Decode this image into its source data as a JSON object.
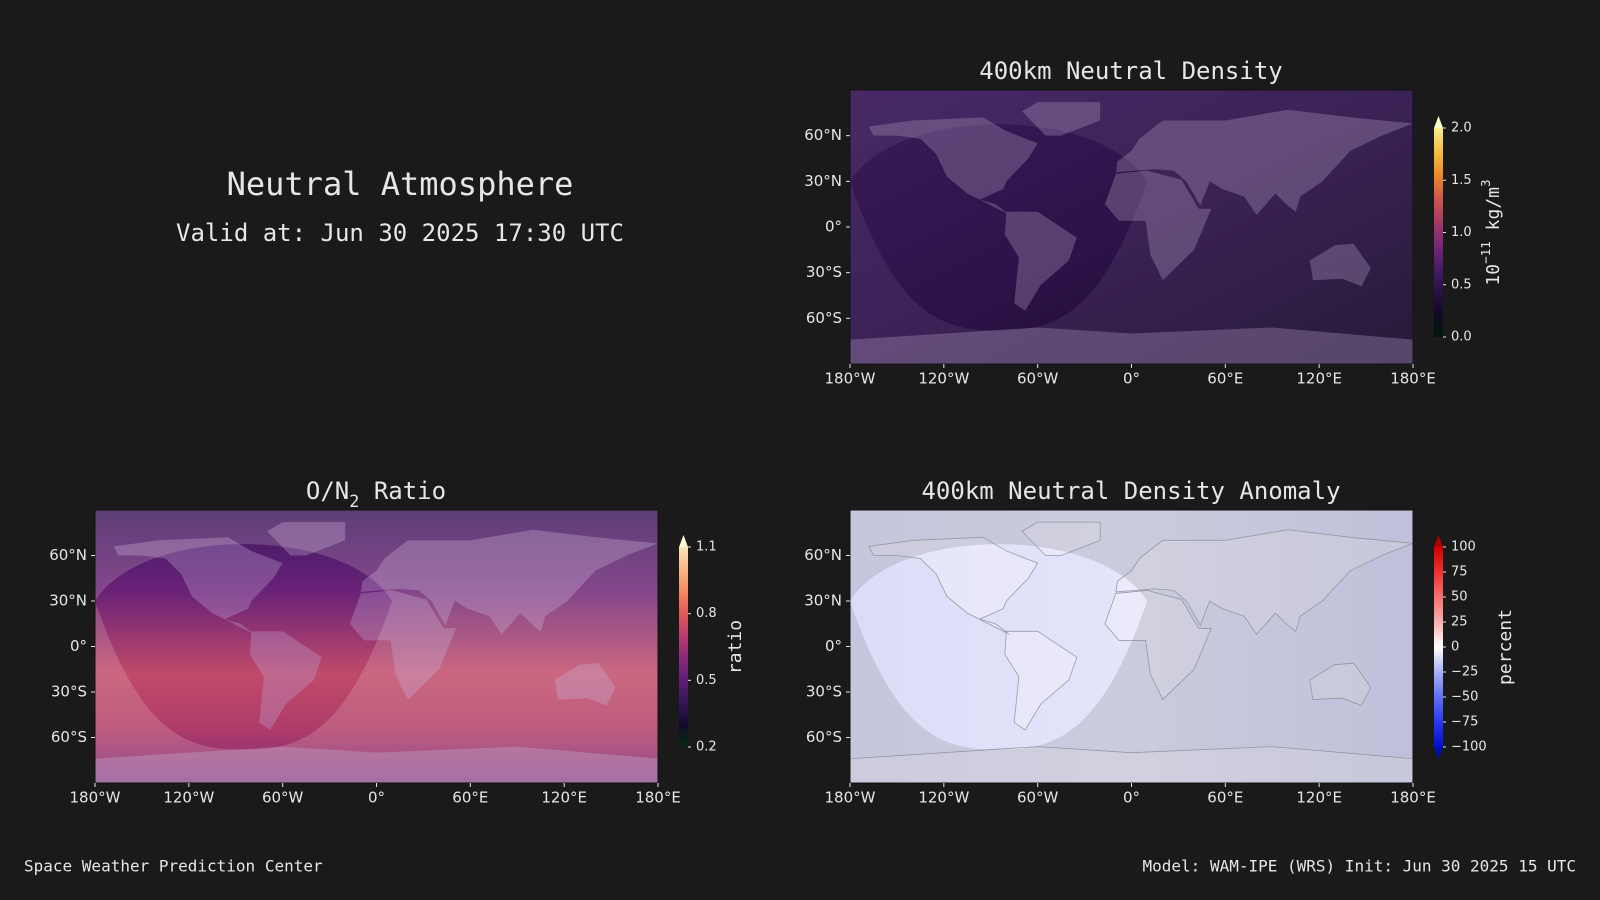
{
  "header": {
    "title": "Neutral Atmosphere",
    "valid": "Valid at: Jun 30 2025 17:30 UTC"
  },
  "footer": {
    "left": "Space Weather Prediction Center",
    "right": "Model: WAM-IPE (WRS) Init: Jun 30 2025 15 UTC"
  },
  "chart_data": [
    {
      "type": "map",
      "title": "400km Neutral Density",
      "xlim": [
        -180,
        180
      ],
      "ylim": [
        -90,
        90
      ],
      "xticks": [
        {
          "value": -180,
          "label": "180°W"
        },
        {
          "value": -120,
          "label": "120°W"
        },
        {
          "value": -60,
          "label": "60°W"
        },
        {
          "value": 0,
          "label": "0°"
        },
        {
          "value": 60,
          "label": "60°E"
        },
        {
          "value": 120,
          "label": "120°E"
        },
        {
          "value": 180,
          "label": "180°E"
        }
      ],
      "yticks": [
        {
          "value": 60,
          "label": "60°N"
        },
        {
          "value": 30,
          "label": "30°N"
        },
        {
          "value": 0,
          "label": "0°"
        },
        {
          "value": -30,
          "label": "30°S"
        },
        {
          "value": -60,
          "label": "60°S"
        }
      ],
      "colorbar": {
        "label": [
          {
            "text": "10"
          },
          {
            "text": "−11",
            "shift": "super"
          },
          {
            "text": " kg/m"
          },
          {
            "text": "3",
            "shift": "super"
          }
        ],
        "lim": [
          0,
          2
        ],
        "extend": "max",
        "ticks": [
          {
            "value": 0,
            "label": "0.0"
          },
          0.5,
          {
            "value": 1,
            "label": "1.0"
          },
          1.5,
          {
            "value": 2,
            "label": "2.0"
          }
        ],
        "colors": [
          "#001a08",
          "#120826",
          "#2a1248",
          "#4a1c6a",
          "#7a2a78",
          "#a83a66",
          "#d0584a",
          "#ec8a2a",
          "#f6c040",
          "#f8ec90"
        ],
        "extend_color": "#f8ffc8"
      }
    },
    {
      "type": "map",
      "title": [
        {
          "text": "O/N"
        },
        {
          "text": "2",
          "shift": "sub"
        },
        {
          "text": " Ratio"
        }
      ],
      "xlim": [
        -180,
        180
      ],
      "ylim": [
        -90,
        90
      ],
      "xticks": [
        {
          "value": -180,
          "label": "180°W"
        },
        {
          "value": -120,
          "label": "120°W"
        },
        {
          "value": -60,
          "label": "60°W"
        },
        {
          "value": 0,
          "label": "0°"
        },
        {
          "value": 60,
          "label": "60°E"
        },
        {
          "value": 120,
          "label": "120°E"
        },
        {
          "value": 180,
          "label": "180°E"
        }
      ],
      "yticks": [
        {
          "value": 60,
          "label": "60°N"
        },
        {
          "value": 30,
          "label": "30°N"
        },
        {
          "value": 0,
          "label": "0°"
        },
        {
          "value": -30,
          "label": "30°S"
        },
        {
          "value": -60,
          "label": "60°S"
        }
      ],
      "colorbar": {
        "label": [
          {
            "text": "ratio"
          }
        ],
        "lim": [
          0.2,
          1.1
        ],
        "extend": "max",
        "ticks": [
          0.2,
          0.5,
          0.8,
          1.1
        ],
        "colors": [
          "#062a10",
          "#140a2c",
          "#361654",
          "#5c1e72",
          "#8a2a7a",
          "#b83c6e",
          "#e05a5a",
          "#f48a62",
          "#f8b888",
          "#fce4b8"
        ],
        "extend_color": "#fff8d8"
      }
    },
    {
      "type": "map",
      "title": "400km Neutral Density Anomaly",
      "xlim": [
        -180,
        180
      ],
      "ylim": [
        -90,
        90
      ],
      "xticks": [
        {
          "value": -180,
          "label": "180°W"
        },
        {
          "value": -120,
          "label": "120°W"
        },
        {
          "value": -60,
          "label": "60°W"
        },
        {
          "value": 0,
          "label": "0°"
        },
        {
          "value": 60,
          "label": "60°E"
        },
        {
          "value": 120,
          "label": "120°E"
        },
        {
          "value": 180,
          "label": "180°E"
        }
      ],
      "yticks": [
        {
          "value": 60,
          "label": "60°N"
        },
        {
          "value": 30,
          "label": "30°N"
        },
        {
          "value": 0,
          "label": "0°"
        },
        {
          "value": -30,
          "label": "30°S"
        },
        {
          "value": -60,
          "label": "60°S"
        }
      ],
      "colorbar": {
        "label": [
          {
            "text": "percent"
          }
        ],
        "lim": [
          -100,
          100
        ],
        "extend": "both",
        "ticks": [
          100,
          75,
          50,
          25,
          0,
          {
            "value": -25,
            "label": "−25"
          },
          {
            "value": -50,
            "label": "−50"
          },
          {
            "value": -75,
            "label": "−75"
          },
          {
            "value": -100,
            "label": "−100"
          }
        ],
        "colors": [
          "#0010d0",
          "#2838f0",
          "#6070f8",
          "#a8b0f8",
          "#ffffff",
          "#f8b0b0",
          "#f87070",
          "#f03030",
          "#d00000"
        ],
        "extend_color": "#b00000",
        "extend_low_color": "#0010b0"
      }
    }
  ]
}
